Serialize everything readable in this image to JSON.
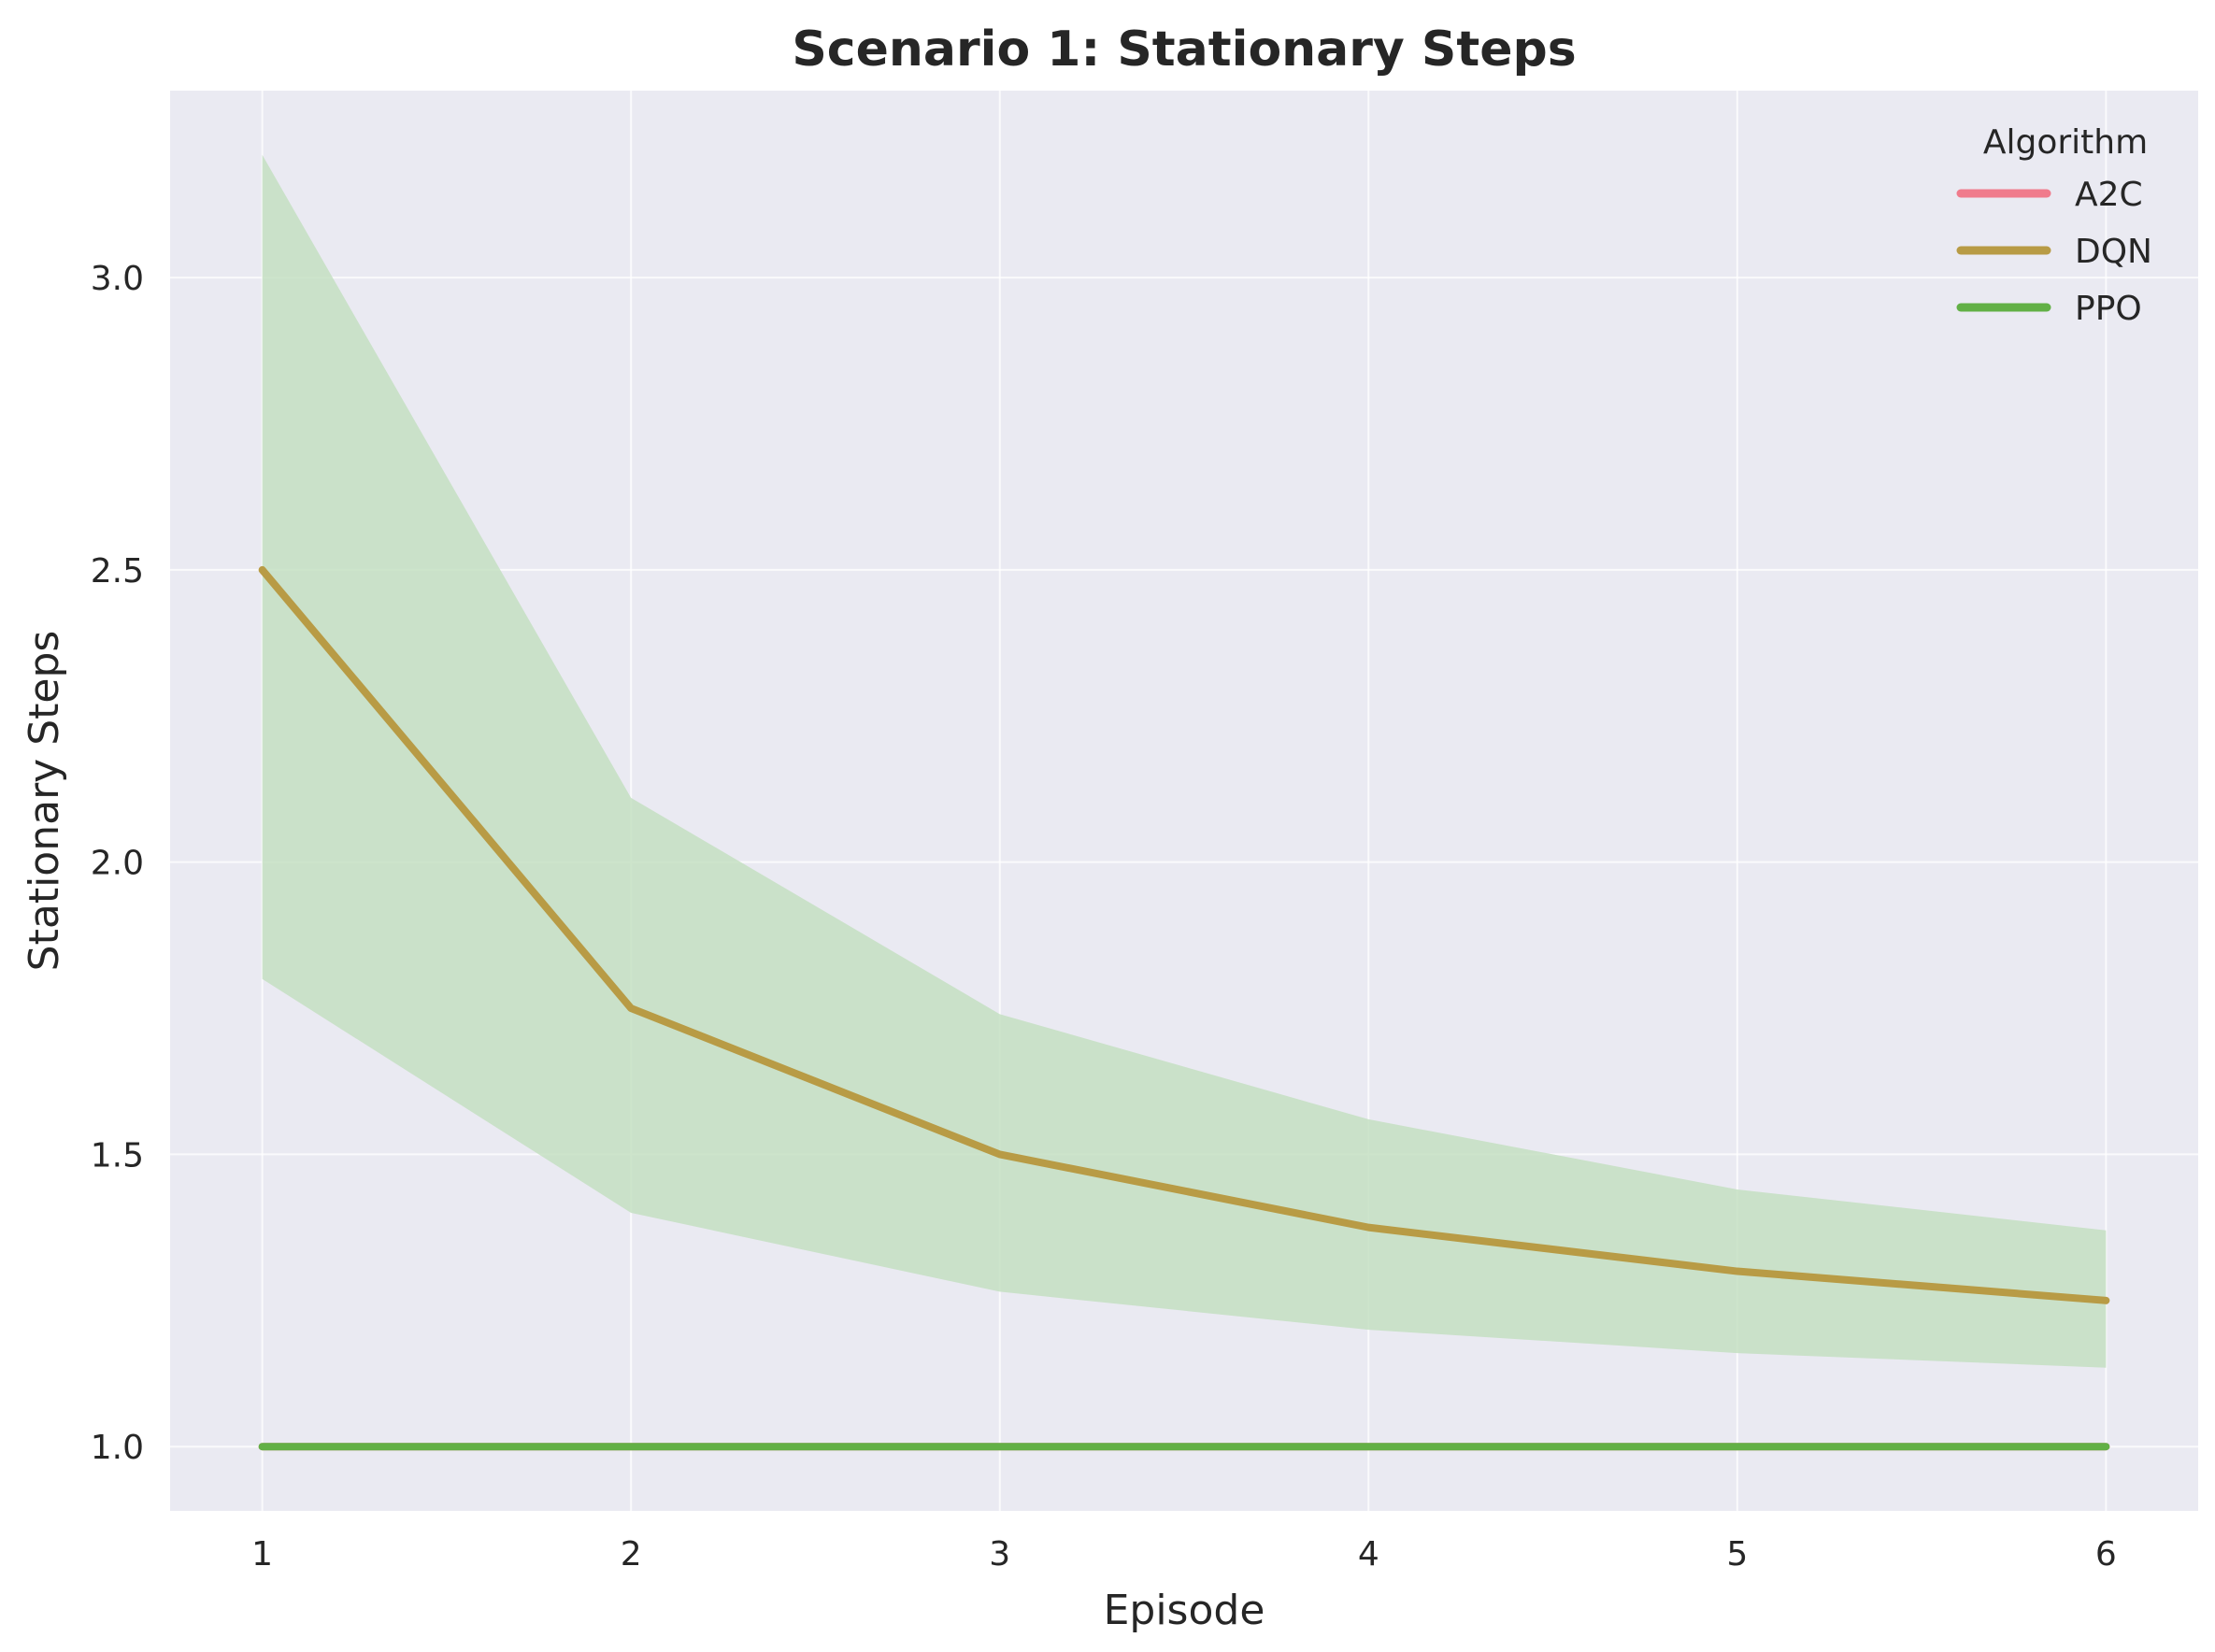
{
  "chart_data": {
    "type": "line",
    "title": "Scenario 1: Stationary Steps",
    "xlabel": "Episode",
    "ylabel": "Stationary Steps",
    "x": [
      1,
      2,
      3,
      4,
      5,
      6
    ],
    "xticks": [
      "1",
      "2",
      "3",
      "4",
      "5",
      "6"
    ],
    "yticks": [
      "1.0",
      "1.5",
      "2.0",
      "2.5",
      "3.0"
    ],
    "xlim": [
      0.75,
      6.25
    ],
    "ylim": [
      0.89,
      3.32
    ],
    "grid": true,
    "legend_title": "Algorithm",
    "legend_position": "top-right",
    "background_color": "#eaeaf2",
    "series": [
      {
        "name": "A2C",
        "color": "#f07b8c",
        "values": [
          1.0,
          1.0,
          1.0,
          1.0,
          1.0,
          1.0
        ]
      },
      {
        "name": "DQN",
        "color": "#b89b45",
        "values": [
          2.5,
          1.75,
          1.5,
          1.375,
          1.3,
          1.25
        ]
      },
      {
        "name": "PPO",
        "color": "#62b046",
        "values": [
          1.0,
          1.0,
          1.0,
          1.0,
          1.0,
          1.0
        ],
        "band_color": "#c4dfc2",
        "band_upper": [
          3.21,
          2.11,
          1.74,
          1.56,
          1.44,
          1.37
        ],
        "band_lower": [
          1.8,
          1.4,
          1.265,
          1.2,
          1.16,
          1.135
        ]
      }
    ]
  }
}
